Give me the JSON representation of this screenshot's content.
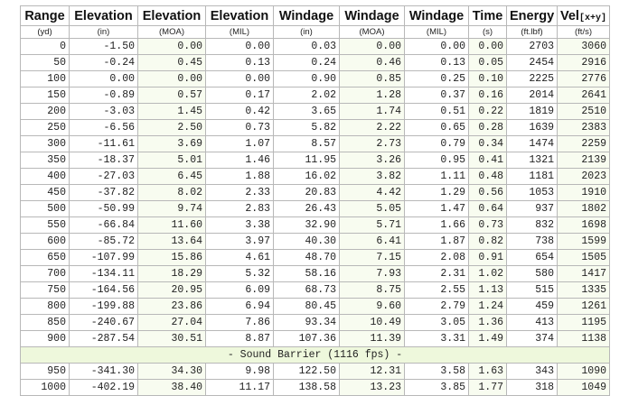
{
  "table": {
    "headers": [
      "Range",
      "Elevation",
      "Elevation",
      "Elevation",
      "Windage",
      "Windage",
      "Windage",
      "Time",
      "Energy",
      "Vel"
    ],
    "vel_subscript": "[x+y]",
    "units": [
      "(yd)",
      "(in)",
      "(MOA)",
      "(MIL)",
      "(in)",
      "(MOA)",
      "(MIL)",
      "(s)",
      "(ft.lbf)",
      "(ft/s)"
    ],
    "rows": [
      [
        "0",
        "-1.50",
        "0.00",
        "0.00",
        "0.03",
        "0.00",
        "0.00",
        "0.00",
        "2703",
        "3060"
      ],
      [
        "50",
        "-0.24",
        "0.45",
        "0.13",
        "0.24",
        "0.46",
        "0.13",
        "0.05",
        "2454",
        "2916"
      ],
      [
        "100",
        "0.00",
        "0.00",
        "0.00",
        "0.90",
        "0.85",
        "0.25",
        "0.10",
        "2225",
        "2776"
      ],
      [
        "150",
        "-0.89",
        "0.57",
        "0.17",
        "2.02",
        "1.28",
        "0.37",
        "0.16",
        "2014",
        "2641"
      ],
      [
        "200",
        "-3.03",
        "1.45",
        "0.42",
        "3.65",
        "1.74",
        "0.51",
        "0.22",
        "1819",
        "2510"
      ],
      [
        "250",
        "-6.56",
        "2.50",
        "0.73",
        "5.82",
        "2.22",
        "0.65",
        "0.28",
        "1639",
        "2383"
      ],
      [
        "300",
        "-11.61",
        "3.69",
        "1.07",
        "8.57",
        "2.73",
        "0.79",
        "0.34",
        "1474",
        "2259"
      ],
      [
        "350",
        "-18.37",
        "5.01",
        "1.46",
        "11.95",
        "3.26",
        "0.95",
        "0.41",
        "1321",
        "2139"
      ],
      [
        "400",
        "-27.03",
        "6.45",
        "1.88",
        "16.02",
        "3.82",
        "1.11",
        "0.48",
        "1181",
        "2023"
      ],
      [
        "450",
        "-37.82",
        "8.02",
        "2.33",
        "20.83",
        "4.42",
        "1.29",
        "0.56",
        "1053",
        "1910"
      ],
      [
        "500",
        "-50.99",
        "9.74",
        "2.83",
        "26.43",
        "5.05",
        "1.47",
        "0.64",
        "937",
        "1802"
      ],
      [
        "550",
        "-66.84",
        "11.60",
        "3.38",
        "32.90",
        "5.71",
        "1.66",
        "0.73",
        "832",
        "1698"
      ],
      [
        "600",
        "-85.72",
        "13.64",
        "3.97",
        "40.30",
        "6.41",
        "1.87",
        "0.82",
        "738",
        "1599"
      ],
      [
        "650",
        "-107.99",
        "15.86",
        "4.61",
        "48.70",
        "7.15",
        "2.08",
        "0.91",
        "654",
        "1505"
      ],
      [
        "700",
        "-134.11",
        "18.29",
        "5.32",
        "58.16",
        "7.93",
        "2.31",
        "1.02",
        "580",
        "1417"
      ],
      [
        "750",
        "-164.56",
        "20.95",
        "6.09",
        "68.73",
        "8.75",
        "2.55",
        "1.13",
        "515",
        "1335"
      ],
      [
        "800",
        "-199.88",
        "23.86",
        "6.94",
        "80.45",
        "9.60",
        "2.79",
        "1.24",
        "459",
        "1261"
      ],
      [
        "850",
        "-240.67",
        "27.04",
        "7.86",
        "93.34",
        "10.49",
        "3.05",
        "1.36",
        "413",
        "1195"
      ],
      [
        "900",
        "-287.54",
        "30.51",
        "8.87",
        "107.36",
        "11.39",
        "3.31",
        "1.49",
        "374",
        "1138"
      ],
      "- Sound Barrier (1116 fps) -",
      [
        "950",
        "-341.30",
        "34.30",
        "9.98",
        "122.50",
        "12.31",
        "3.58",
        "1.63",
        "343",
        "1090"
      ],
      [
        "1000",
        "-402.19",
        "38.40",
        "11.17",
        "138.58",
        "13.23",
        "3.85",
        "1.77",
        "318",
        "1049"
      ]
    ]
  }
}
